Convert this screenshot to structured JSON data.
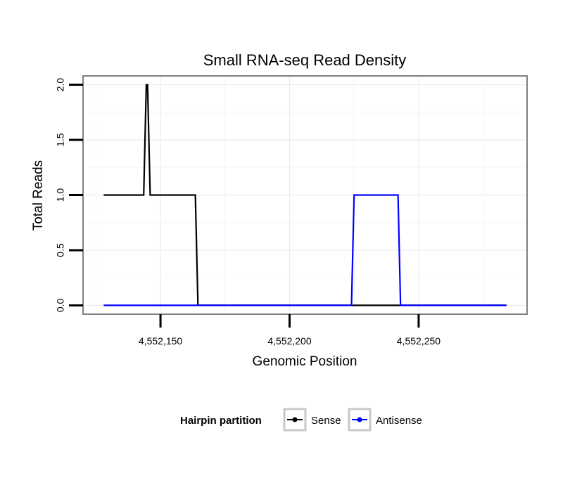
{
  "chart_data": {
    "type": "line",
    "title": "Small RNA-seq Read Density",
    "xlabel": "Genomic Position",
    "ylabel": "Total Reads",
    "xlim": [
      4552120,
      4552292
    ],
    "ylim": [
      -0.08,
      2.08
    ],
    "x_ticks": [
      4552150,
      4552200,
      4552250
    ],
    "x_tick_labels": [
      "4,552,150",
      "4,552,200",
      "4,552,250"
    ],
    "y_ticks": [
      0.0,
      0.5,
      1.0,
      1.5,
      2.0
    ],
    "y_tick_labels": [
      "0.0",
      "0.5",
      "1.0",
      "1.5",
      "2.0"
    ],
    "grid": true,
    "legend": {
      "title": "Hairpin partition",
      "position": "bottom"
    },
    "series": [
      {
        "name": "Sense",
        "color": "#000000",
        "x": [
          4552128,
          4552143.5,
          4552144.5,
          4552145,
          4552146,
          4552147,
          4552148,
          4552163.5,
          4552164.5,
          4552284
        ],
        "y": [
          1,
          1,
          2,
          2,
          1,
          1,
          1,
          1,
          0,
          0
        ]
      },
      {
        "name": "Antisense",
        "color": "#0000ff",
        "x": [
          4552128,
          4552147,
          4552164,
          4552224,
          4552225,
          4552242,
          4552243,
          4552284
        ],
        "y": [
          0,
          0,
          0,
          0,
          1,
          1,
          0,
          0
        ]
      }
    ]
  }
}
